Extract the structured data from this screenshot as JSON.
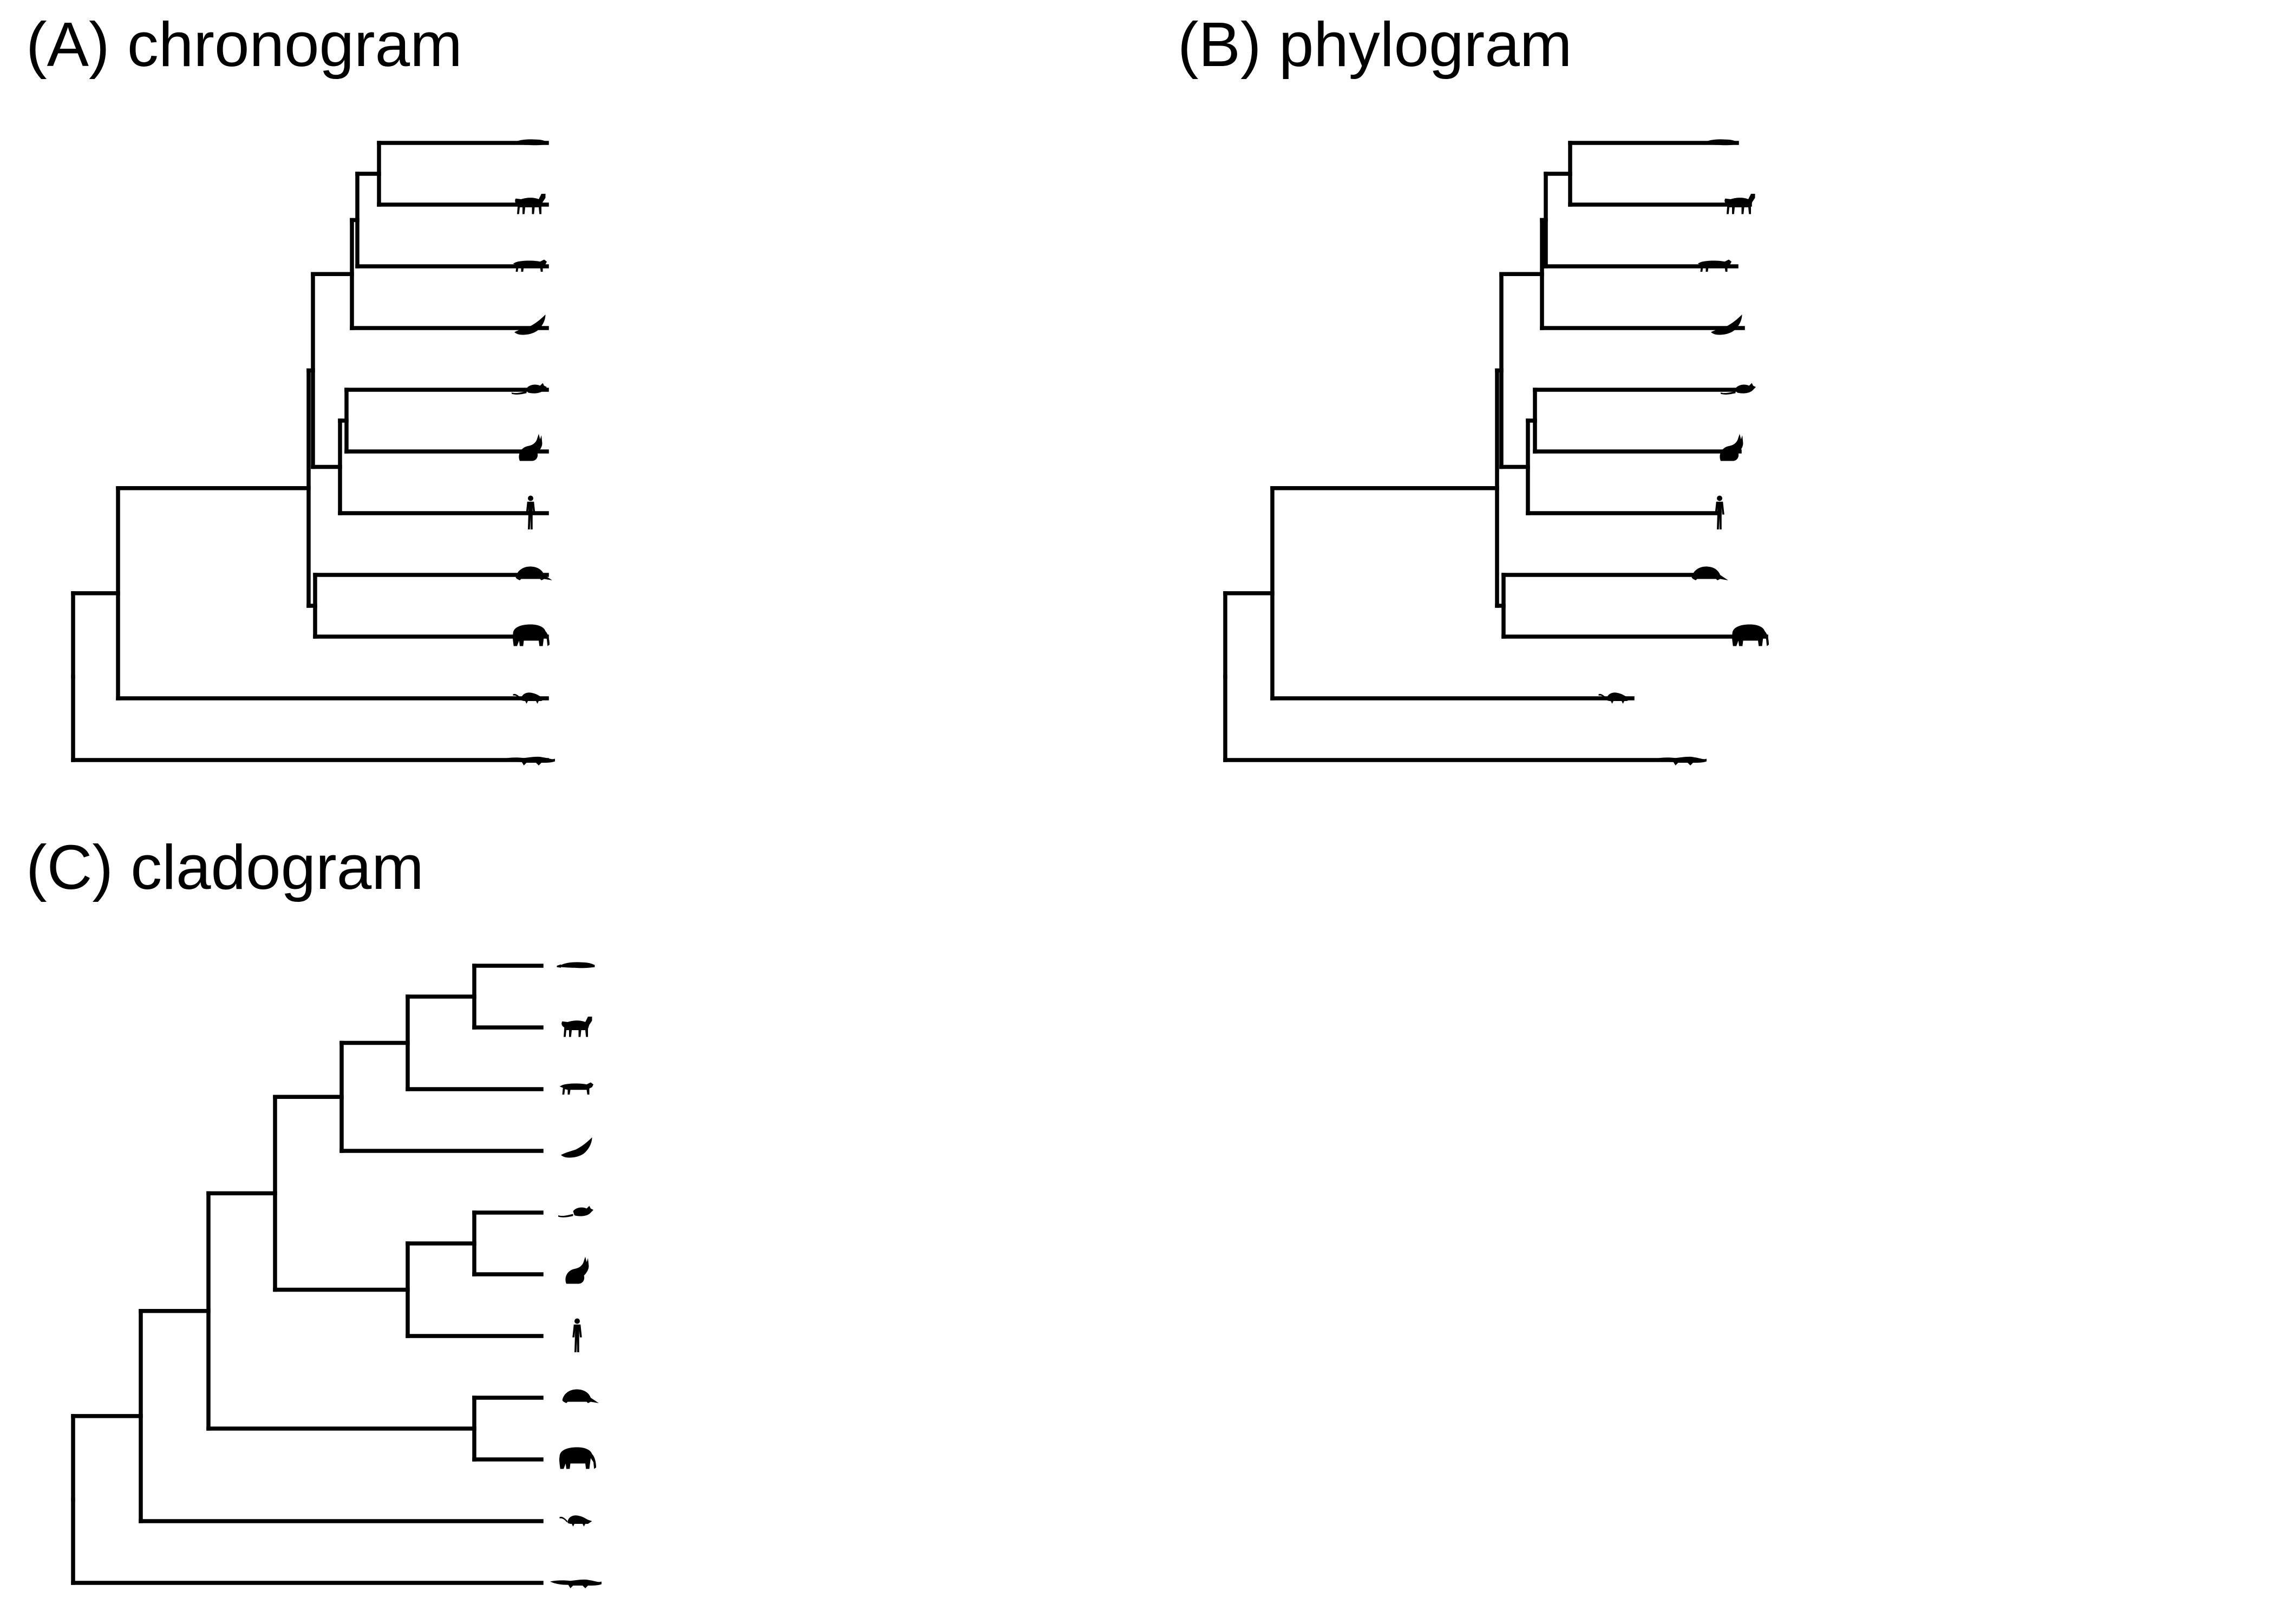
{
  "colors": {
    "background": "#ffffff",
    "ink": "#000000"
  },
  "taxa": [
    "platypus",
    "horse",
    "dog",
    "bat",
    "rat",
    "rabbit",
    "human",
    "armadillo",
    "elephant",
    "opossum",
    "crocodile"
  ],
  "panels": [
    {
      "id": "chronogram",
      "title": "(A) chronogram",
      "tree": "(((((((1,2),3),4),((5,6),7)),(8,9)),10),11);",
      "tips_aligned": true
    },
    {
      "id": "phylogram",
      "title": "(B) phylogram",
      "tree": "(((((((1,2),3),4),((5,6),7)),(8,9)),10),11);",
      "tips_aligned": false
    },
    {
      "id": "cladogram",
      "title": "(C) cladogram",
      "tree": "(((((((1,2),3),4),((5,6),7)),(8,9)),10),11);",
      "tips_aligned": true
    }
  ]
}
